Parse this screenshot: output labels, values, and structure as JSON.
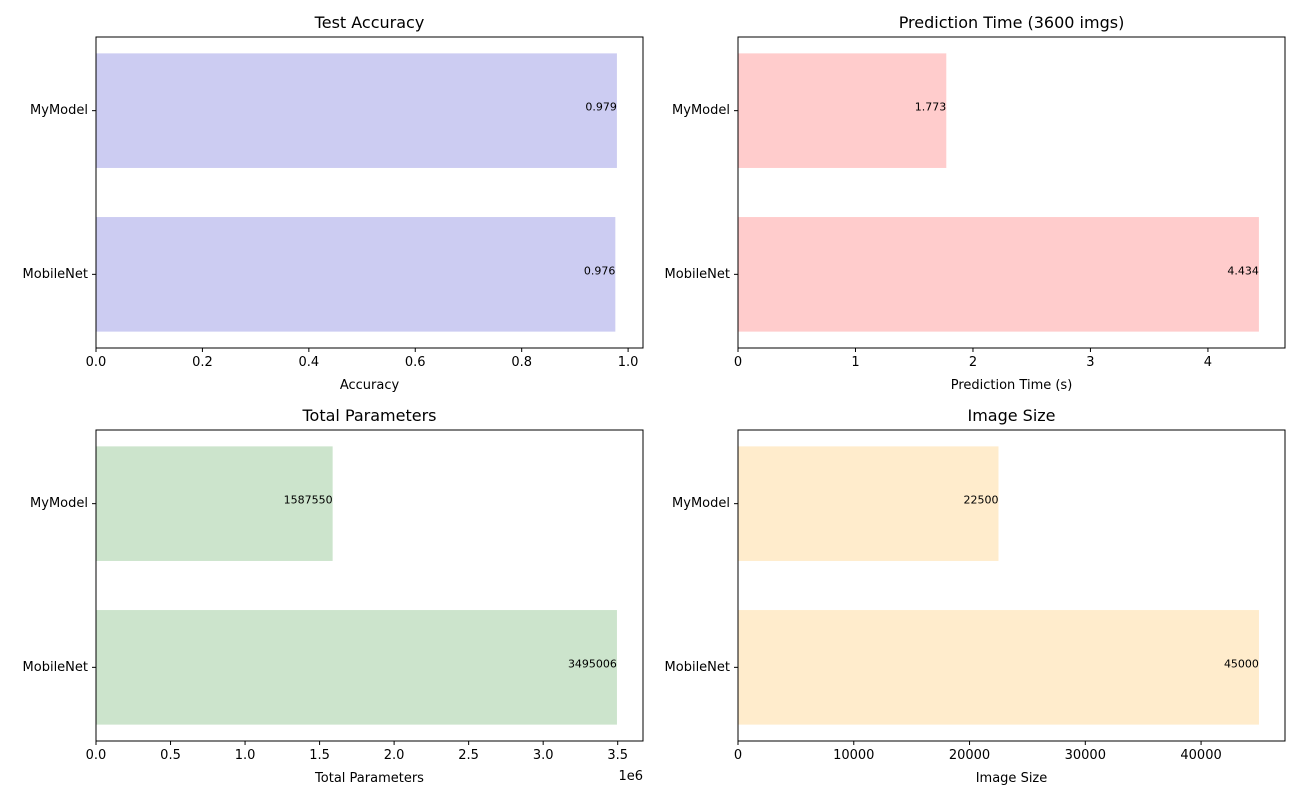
{
  "chart_data": [
    {
      "type": "bar",
      "orientation": "horizontal",
      "title": "Test Accuracy",
      "xlabel": "Accuracy",
      "ylabel": "",
      "categories": [
        "MyModel",
        "MobileNet"
      ],
      "values": [
        0.979,
        0.976
      ],
      "value_labels": [
        "0.979",
        "0.976"
      ],
      "xlim": [
        0,
        1.028
      ],
      "xticks": [
        0,
        0.2,
        0.4,
        0.6,
        0.8,
        1.0
      ],
      "xtick_labels": [
        "0.0",
        "0.2",
        "0.4",
        "0.6",
        "0.8",
        "1.0"
      ],
      "offset_text": "",
      "color": "#ccccf2",
      "grid": false
    },
    {
      "type": "bar",
      "orientation": "horizontal",
      "title": "Prediction Time (3600 imgs)",
      "xlabel": "Prediction Time (s)",
      "ylabel": "",
      "categories": [
        "MyModel",
        "MobileNet"
      ],
      "values": [
        1.773,
        4.434
      ],
      "value_labels": [
        "1.773",
        "4.434"
      ],
      "xlim": [
        0,
        4.656
      ],
      "xticks": [
        0,
        1,
        2,
        3,
        4
      ],
      "xtick_labels": [
        "0",
        "1",
        "2",
        "3",
        "4"
      ],
      "offset_text": "",
      "color": "#ffcccc",
      "grid": false
    },
    {
      "type": "bar",
      "orientation": "horizontal",
      "title": "Total Parameters",
      "xlabel": "Total Parameters",
      "ylabel": "",
      "categories": [
        "MyModel",
        "MobileNet"
      ],
      "values": [
        1587550,
        3495006
      ],
      "value_labels": [
        "1587550",
        "3495006"
      ],
      "xlim": [
        0,
        3669756
      ],
      "xticks": [
        0,
        500000,
        1000000,
        1500000,
        2000000,
        2500000,
        3000000,
        3500000
      ],
      "xtick_labels": [
        "0.0",
        "0.5",
        "1.0",
        "1.5",
        "2.0",
        "2.5",
        "3.0",
        "3.5"
      ],
      "offset_text": "1e6",
      "color": "#cce4cc",
      "grid": false
    },
    {
      "type": "bar",
      "orientation": "horizontal",
      "title": "Image Size",
      "xlabel": "Image Size",
      "ylabel": "",
      "categories": [
        "MyModel",
        "MobileNet"
      ],
      "values": [
        22500,
        45000
      ],
      "value_labels": [
        "22500",
        "45000"
      ],
      "xlim": [
        0,
        47250
      ],
      "xticks": [
        0,
        10000,
        20000,
        30000,
        40000
      ],
      "xtick_labels": [
        "0",
        "10000",
        "20000",
        "30000",
        "40000"
      ],
      "offset_text": "",
      "color": "#ffeccc",
      "grid": false
    }
  ]
}
